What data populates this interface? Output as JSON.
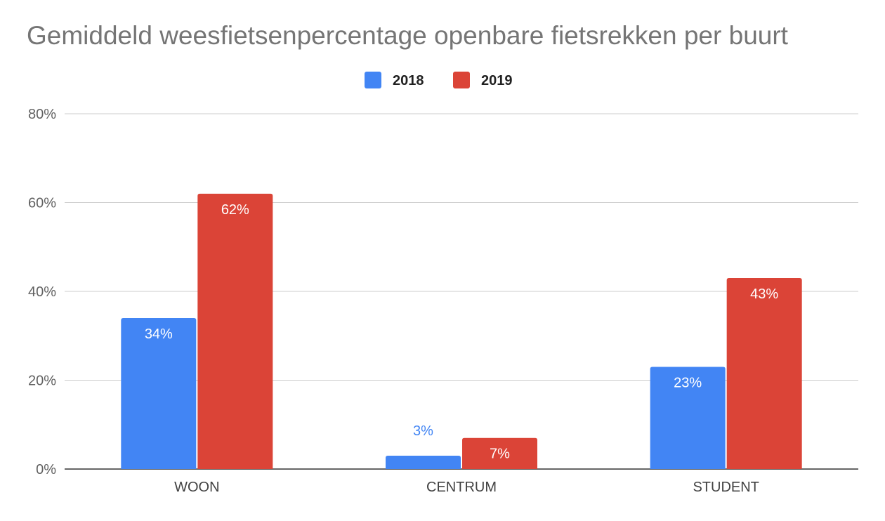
{
  "chart_data": {
    "type": "bar",
    "title": "Gemiddeld weesfietsenpercentage openbare fietsrekken per buurt",
    "xlabel": "",
    "ylabel": "",
    "categories": [
      "WOON",
      "CENTRUM",
      "STUDENT"
    ],
    "series": [
      {
        "name": "2018",
        "color": "#4285F4",
        "values": [
          34,
          3,
          23
        ],
        "labels": [
          "34%",
          "3%",
          "23%"
        ]
      },
      {
        "name": "2019",
        "color": "#DB4437",
        "values": [
          62,
          7,
          43
        ],
        "labels": [
          "62%",
          "7%",
          "43%"
        ]
      }
    ],
    "ylim": [
      0,
      80
    ],
    "yticks": [
      "0%",
      "20%",
      "40%",
      "60%",
      "80%"
    ],
    "grid": true,
    "legend": "top-center"
  }
}
